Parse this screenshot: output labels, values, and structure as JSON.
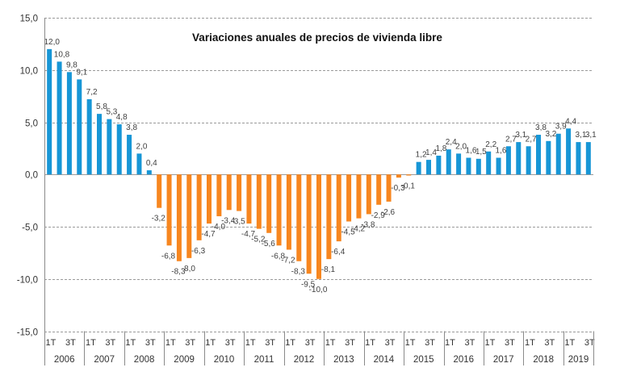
{
  "chart_data": {
    "type": "bar",
    "title": "Variaciones anuales de precios de vivienda libre",
    "xlabel": "",
    "ylabel": "",
    "ylim": [
      -15,
      15
    ],
    "yticks": [
      15,
      10,
      5,
      0,
      -5,
      -10,
      -15
    ],
    "ytick_labels": [
      "15,0",
      "10,0",
      "5,0",
      "0,0",
      "-5,0",
      "-10,0",
      "-15,0"
    ],
    "grid": true,
    "legend": null,
    "quarter_tick_labels": [
      "1T",
      "3T"
    ],
    "years": [
      {
        "label": "2006",
        "quarters": 4
      },
      {
        "label": "2007",
        "quarters": 4
      },
      {
        "label": "2008",
        "quarters": 4
      },
      {
        "label": "2009",
        "quarters": 4
      },
      {
        "label": "2010",
        "quarters": 4
      },
      {
        "label": "2011",
        "quarters": 4
      },
      {
        "label": "2012",
        "quarters": 4
      },
      {
        "label": "2013",
        "quarters": 4
      },
      {
        "label": "2014",
        "quarters": 4
      },
      {
        "label": "2015",
        "quarters": 4
      },
      {
        "label": "2016",
        "quarters": 4
      },
      {
        "label": "2017",
        "quarters": 4
      },
      {
        "label": "2018",
        "quarters": 4
      },
      {
        "label": "2019",
        "quarters": 3
      }
    ],
    "categories": [
      "2006 1T",
      "2006 2T",
      "2006 3T",
      "2006 4T",
      "2007 1T",
      "2007 2T",
      "2007 3T",
      "2007 4T",
      "2008 1T",
      "2008 2T",
      "2008 3T",
      "2008 4T",
      "2009 1T",
      "2009 2T",
      "2009 3T",
      "2009 4T",
      "2010 1T",
      "2010 2T",
      "2010 3T",
      "2010 4T",
      "2011 1T",
      "2011 2T",
      "2011 3T",
      "2011 4T",
      "2012 1T",
      "2012 2T",
      "2012 3T",
      "2012 4T",
      "2013 1T",
      "2013 2T",
      "2013 3T",
      "2013 4T",
      "2014 1T",
      "2014 2T",
      "2014 3T",
      "2014 4T",
      "2015 1T",
      "2015 2T",
      "2015 3T",
      "2015 4T",
      "2016 1T",
      "2016 2T",
      "2016 3T",
      "2016 4T",
      "2017 1T",
      "2017 2T",
      "2017 3T",
      "2017 4T",
      "2018 1T",
      "2018 2T",
      "2018 3T",
      "2018 4T",
      "2019 1T",
      "2019 2T",
      "2019 3T"
    ],
    "values": [
      12.0,
      10.8,
      9.8,
      9.1,
      7.2,
      5.8,
      5.3,
      4.8,
      3.8,
      2.0,
      0.4,
      -3.2,
      -6.8,
      -8.3,
      -8.0,
      -6.3,
      -4.7,
      -4.0,
      -3.4,
      -3.5,
      -4.7,
      -5.2,
      -5.6,
      -6.8,
      -7.2,
      -8.3,
      -9.5,
      -10.0,
      -8.1,
      -6.4,
      -4.5,
      -4.2,
      -3.8,
      -2.9,
      -2.6,
      -0.3,
      -0.1,
      1.2,
      1.4,
      1.8,
      2.4,
      2.0,
      1.6,
      1.5,
      2.2,
      1.6,
      2.7,
      3.1,
      2.7,
      3.8,
      3.2,
      3.9,
      4.4,
      3.1,
      3.1
    ],
    "data_labels": [
      "12,0",
      "10,8",
      "9,8",
      "9,1",
      "7,2",
      "5,8",
      "5,3",
      "4,8",
      "3,8",
      "2,0",
      "0,4",
      "-3,2",
      "-6,8",
      "-8,3",
      "-8,0",
      "-6,3",
      "-4,7",
      "-4,0",
      "-3,4",
      "-3,5",
      "-4,7",
      "-5,2",
      "-5,6",
      "-6,8",
      "-7,2",
      "-8,3",
      "-9,5",
      "-10,0",
      "-8,1",
      "-6,4",
      "-4,5",
      "-4,2",
      "-3,8",
      "-2,9",
      "-2,6",
      "-0,3",
      "-0,1",
      "1,2",
      "1,4",
      "1,8",
      "2,4",
      "2,0",
      "1,6",
      "1,5",
      "2,2",
      "1,6",
      "2,7",
      "3,1",
      "2,7",
      "3,8",
      "3,2",
      "3,9",
      "4,4",
      "3,1",
      "3,1"
    ],
    "colors": {
      "positive": "#1796d6",
      "negative": "#f7861f"
    }
  }
}
